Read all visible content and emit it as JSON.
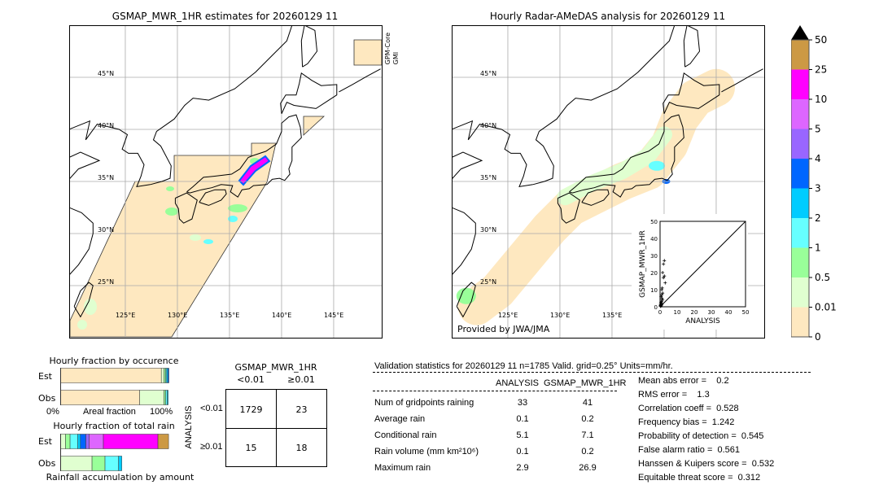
{
  "left_map": {
    "title": "GSMAP_MWR_1HR estimates for 20260129 11",
    "sensor_label_1": "GPM-Core",
    "sensor_label_2": "GMI"
  },
  "right_map": {
    "title": "Hourly Radar-AMeDAS analysis for 20260129 11",
    "credit": "Provided by JWA/JMA"
  },
  "lat_labels": [
    "45°N",
    "40°N",
    "35°N",
    "30°N",
    "25°N"
  ],
  "lon_labels": [
    "125°E",
    "130°E",
    "135°E",
    "140°E",
    "145°E"
  ],
  "colorbar": {
    "ticks": [
      "0",
      "0.01",
      "0.5",
      "1",
      "2",
      "3",
      "4",
      "5",
      "10",
      "25",
      "50"
    ],
    "colors": [
      "#fee8c0",
      "#e0ffd0",
      "#99ff99",
      "#66ffff",
      "#00ccff",
      "#0066ff",
      "#9966ff",
      "#dd66ff",
      "#ff00ff",
      "#cc9944"
    ],
    "extend_color": "#000000"
  },
  "occurrence_chart": {
    "title": "Hourly fraction by occurence",
    "rows": [
      {
        "label": "Est",
        "fractions": [
          0.93,
          0.025,
          0.015,
          0.01,
          0.01,
          0.01
        ]
      },
      {
        "label": "Obs",
        "fractions": [
          0.73,
          0.225,
          0.015,
          0.015,
          0.008
        ]
      }
    ],
    "xlabel": "Areal fraction",
    "x_min_label": "0%",
    "x_max_label": "100%"
  },
  "rain_chart": {
    "title": "Hourly fraction of total rain",
    "rows": [
      {
        "label": "Est",
        "fractions": [
          0.045,
          0.042,
          0.071,
          0.025,
          0.05,
          0.03,
          0.132,
          0.504,
          0.098
        ]
      },
      {
        "label": "Obs",
        "fractions": [
          0.29,
          0.12,
          0.125,
          0.03
        ]
      }
    ],
    "xlabel": "Rainfall accumulation by amount"
  },
  "contingency": {
    "title": "GSMAP_MWR_1HR",
    "col_headers": [
      "<0.01",
      "≥0.01"
    ],
    "row_axis": "ANALYSIS",
    "row_headers": [
      "<0.01",
      "≥0.01"
    ],
    "cells": [
      [
        "1729",
        "23"
      ],
      [
        "15",
        "18"
      ]
    ]
  },
  "stats": {
    "title": "Validation statistics for 20260129 11  n=1785 Valid. grid=0.25° Units=mm/hr.",
    "col_headers": [
      "ANALYSIS",
      "GSMAP_MWR_1HR"
    ],
    "rows": [
      {
        "label": "Num of gridpoints raining",
        "a": "33",
        "b": "41"
      },
      {
        "label": "Average rain",
        "a": "0.1",
        "b": "0.2"
      },
      {
        "label": "Conditional rain",
        "a": "5.1",
        "b": "7.1"
      },
      {
        "label": "Rain volume (mm km²10⁶)",
        "a": "0.1",
        "b": "0.2"
      },
      {
        "label": "Maximum rain",
        "a": "2.9",
        "b": "26.9"
      }
    ],
    "scores": [
      "Mean abs error =    0.2",
      "RMS error =    1.3",
      "Correlation coeff =  0.528",
      "Frequency bias =  1.242",
      "Probability of detection =  0.545",
      "False alarm ratio =  0.561",
      "Hanssen & Kuipers score =  0.532",
      "Equitable threat score =  0.312"
    ]
  },
  "chart_data": {
    "type": "scatter",
    "xlabel": "ANALYSIS",
    "ylabel": "GSMAP_MWR_1HR",
    "xlim": [
      0,
      50
    ],
    "ylim": [
      0,
      50
    ],
    "ticks": [
      "0",
      "10",
      "20",
      "30",
      "40",
      "50"
    ],
    "points": [
      [
        0.2,
        0.3
      ],
      [
        0.5,
        0.5
      ],
      [
        0.5,
        1
      ],
      [
        1,
        1
      ],
      [
        1,
        2
      ],
      [
        0.8,
        3
      ],
      [
        1,
        4
      ],
      [
        1.2,
        5
      ],
      [
        1.5,
        4
      ],
      [
        0.6,
        6
      ],
      [
        1,
        7
      ],
      [
        1,
        10
      ],
      [
        1.3,
        11
      ],
      [
        1.5,
        8
      ],
      [
        1.5,
        20
      ],
      [
        2,
        25
      ],
      [
        2.5,
        27
      ],
      [
        2,
        17
      ],
      [
        2.5,
        18
      ],
      [
        3,
        14
      ],
      [
        0.3,
        1.5
      ],
      [
        0.5,
        2.5
      ],
      [
        0.2,
        0.8
      ]
    ]
  }
}
